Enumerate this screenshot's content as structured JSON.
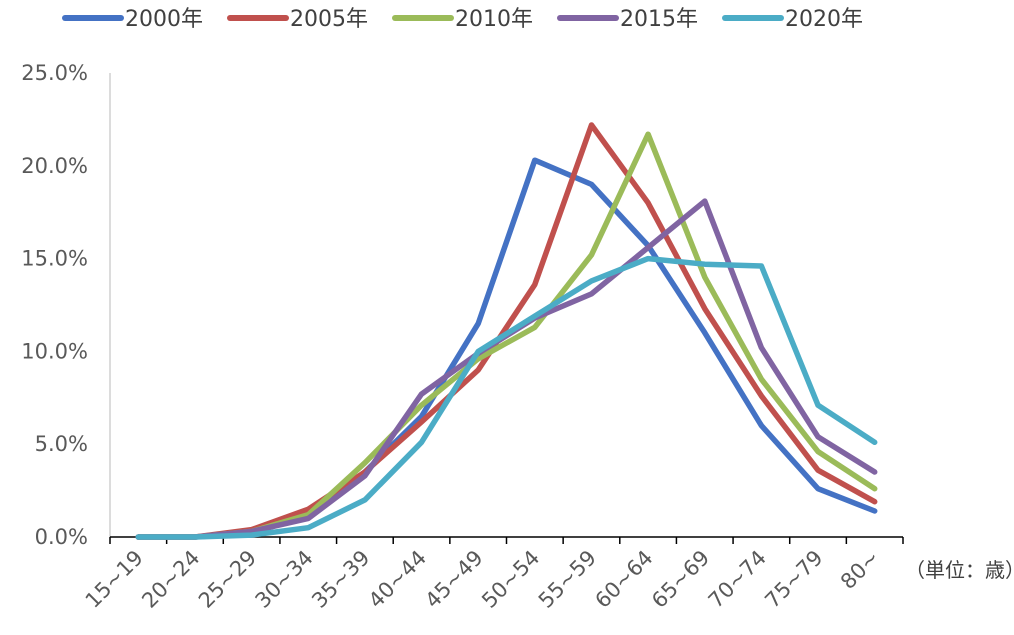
{
  "chart_data": {
    "type": "line",
    "categories": [
      "15~19",
      "20~24",
      "25~29",
      "30~34",
      "35~39",
      "40~44",
      "45~49",
      "50~54",
      "55~59",
      "60~64",
      "65~69",
      "70~74",
      "75~79",
      "80~"
    ],
    "series": [
      {
        "name": "2000年",
        "color": "#4472C4",
        "values": [
          0.0,
          0.0,
          0.2,
          1.2,
          3.5,
          6.5,
          11.5,
          20.3,
          19.0,
          15.7,
          11.0,
          6.0,
          2.6,
          1.4
        ]
      },
      {
        "name": "2005年",
        "color": "#C0504D",
        "values": [
          0.0,
          0.0,
          0.4,
          1.5,
          3.5,
          6.2,
          9.0,
          13.6,
          22.2,
          18.0,
          12.3,
          7.6,
          3.6,
          1.9
        ]
      },
      {
        "name": "2010年",
        "color": "#9BBB59",
        "values": [
          0.0,
          0.0,
          0.3,
          1.2,
          4.0,
          7.1,
          9.6,
          11.3,
          15.2,
          21.7,
          14.0,
          8.5,
          4.6,
          2.6
        ]
      },
      {
        "name": "2015年",
        "color": "#8064A2",
        "values": [
          0.0,
          0.0,
          0.3,
          1.0,
          3.3,
          7.7,
          9.9,
          11.8,
          13.1,
          15.6,
          18.1,
          10.2,
          5.4,
          3.5
        ]
      },
      {
        "name": "2020年",
        "color": "#4BACC6",
        "values": [
          0.0,
          0.0,
          0.1,
          0.5,
          2.0,
          5.1,
          10.0,
          11.9,
          13.8,
          15.0,
          14.7,
          14.6,
          7.1,
          5.1
        ]
      }
    ],
    "yticks": [
      "0.0%",
      "5.0%",
      "10.0%",
      "15.0%",
      "20.0%",
      "25.0%"
    ],
    "ylim": [
      0,
      25
    ],
    "unit_label": "（単位：歳）",
    "legend_position": "top",
    "grid": false
  }
}
